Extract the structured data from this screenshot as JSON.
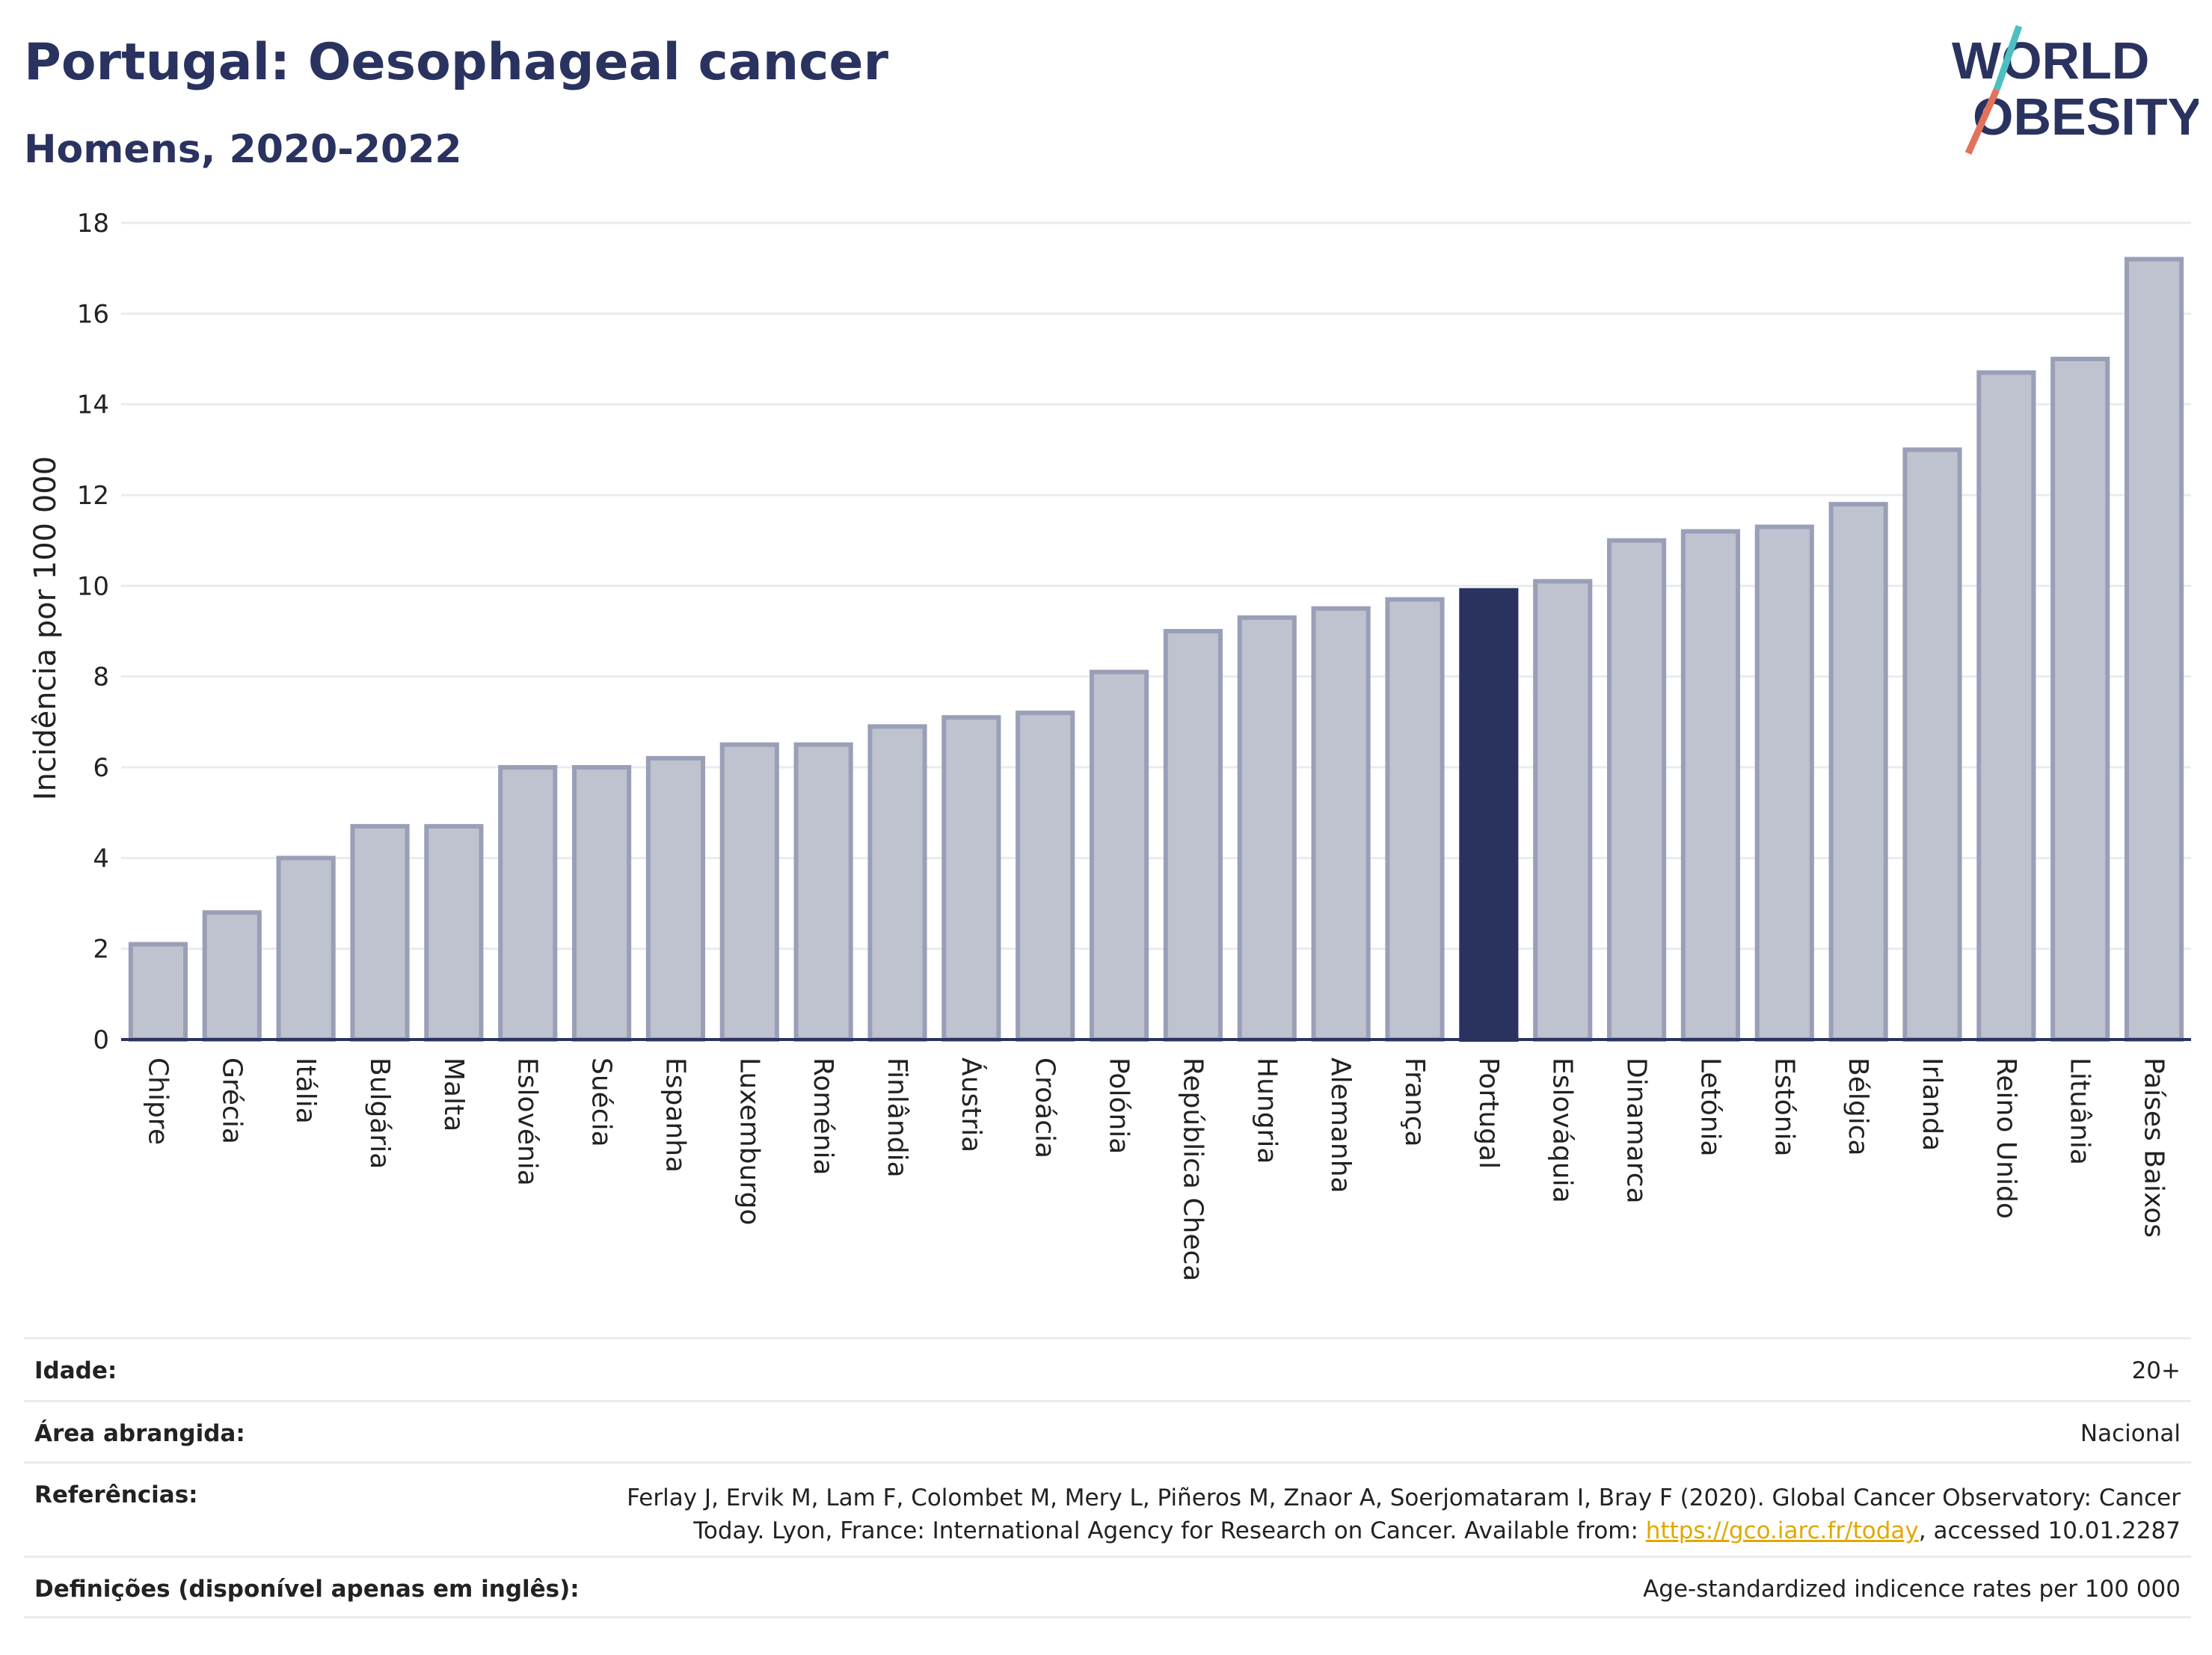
{
  "header": {
    "title": "Portugal: Oesophageal cancer",
    "subtitle": "Homens, 2020-2022"
  },
  "logo": {
    "line1": "WORLD",
    "line2": "OBESITY",
    "stripe_colors": [
      "#4cbfc2",
      "#e2725b"
    ],
    "text_color": "#2a335f"
  },
  "chart_data": {
    "type": "bar",
    "ylabel": "Incidência por 100 000",
    "xlabel": "",
    "ylim": [
      0,
      18
    ],
    "yticks": [
      0,
      2,
      4,
      6,
      8,
      10,
      12,
      14,
      16,
      18
    ],
    "grid": true,
    "categories": [
      "Chipre",
      "Grécia",
      "Itália",
      "Bulgária",
      "Malta",
      "Eslovénia",
      "Suécia",
      "Espanha",
      "Luxemburgo",
      "Roménia",
      "Finlândia",
      "Áustria",
      "Croácia",
      "Polónia",
      "República Checa",
      "Hungria",
      "Alemanha",
      "França",
      "Portugal",
      "Eslováquia",
      "Dinamarca",
      "Letónia",
      "Estónia",
      "Bélgica",
      "Irlanda",
      "Reino Unido",
      "Lituânia",
      "Países Baixos"
    ],
    "values": [
      2.1,
      2.8,
      4.0,
      4.7,
      4.7,
      6.0,
      6.0,
      6.2,
      6.5,
      6.5,
      6.9,
      7.1,
      7.2,
      8.1,
      9.0,
      9.3,
      9.5,
      9.7,
      9.9,
      10.1,
      11.0,
      11.2,
      11.3,
      11.8,
      13.0,
      14.7,
      15.0,
      17.2
    ],
    "highlight": "Portugal",
    "colors": {
      "bar_fill": "#bfc2cf",
      "bar_stroke": "#9a9fb8",
      "highlight_fill": "#2a335f",
      "grid": "#e8ecef",
      "axis": "#2a335f"
    }
  },
  "meta": {
    "rows": [
      {
        "label": "Idade:",
        "value": "20+"
      },
      {
        "label": "Área abrangida:",
        "value": "Nacional"
      },
      {
        "label": "Referências:",
        "value_pre": "Ferlay J, Ervik M, Lam F, Colombet M, Mery L, Piñeros M, Znaor A, Soerjomataram I, Bray F (2020). Global Cancer Observatory: Cancer Today. Lyon, France: International Agency for Research on Cancer. Available from: ",
        "link": "https://gco.iarc.fr/today",
        "value_post": ", accessed 10.01.2287"
      },
      {
        "label": "Definições (disponível apenas em inglês):",
        "value": "Age-standardized indicence rates per 100 000"
      }
    ]
  }
}
